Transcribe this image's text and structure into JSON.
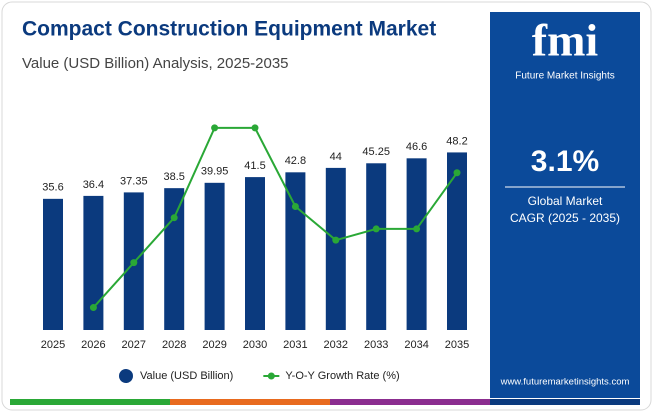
{
  "chart_data": {
    "type": "bar_line",
    "title": "Compact Construction Equipment Market",
    "subtitle": "Value (USD Billion) Analysis, 2025-2035",
    "categories": [
      "2025",
      "2026",
      "2027",
      "2028",
      "2029",
      "2030",
      "2031",
      "2032",
      "2033",
      "2034",
      "2035"
    ],
    "series": [
      {
        "name": "Value (USD Billion)",
        "color": "#0b3a7e",
        "type": "bar",
        "values": [
          35.6,
          36.4,
          37.35,
          38.5,
          39.95,
          41.5,
          42.8,
          44,
          45.25,
          46.6,
          48.2
        ],
        "value_labels": [
          "35.6",
          "36.4",
          "37.35",
          "38.5",
          "39.95",
          "41.5",
          "42.8",
          "44",
          "45.25",
          "46.6",
          "48.2"
        ]
      },
      {
        "name": "Y-O-Y Growth Rate (%)",
        "color": "#2aa836",
        "type": "line",
        "axis": "y2",
        "values": [
          null,
          2.2,
          2.6,
          3.0,
          3.8,
          3.8,
          3.1,
          2.8,
          2.9,
          2.9,
          3.4
        ]
      }
    ],
    "ylim": [
      0,
      57
    ],
    "y2lim": [
      2.0,
      3.87
    ],
    "legend": "bottom"
  },
  "sidebar": {
    "logo": "fmi",
    "brand": "Future Market Insights",
    "cagr": "3.1%",
    "cagr_label_1": "Global Market",
    "cagr_label_2": "CAGR (2025 - 2035)",
    "website": "www.futuremarketinsights.com"
  }
}
